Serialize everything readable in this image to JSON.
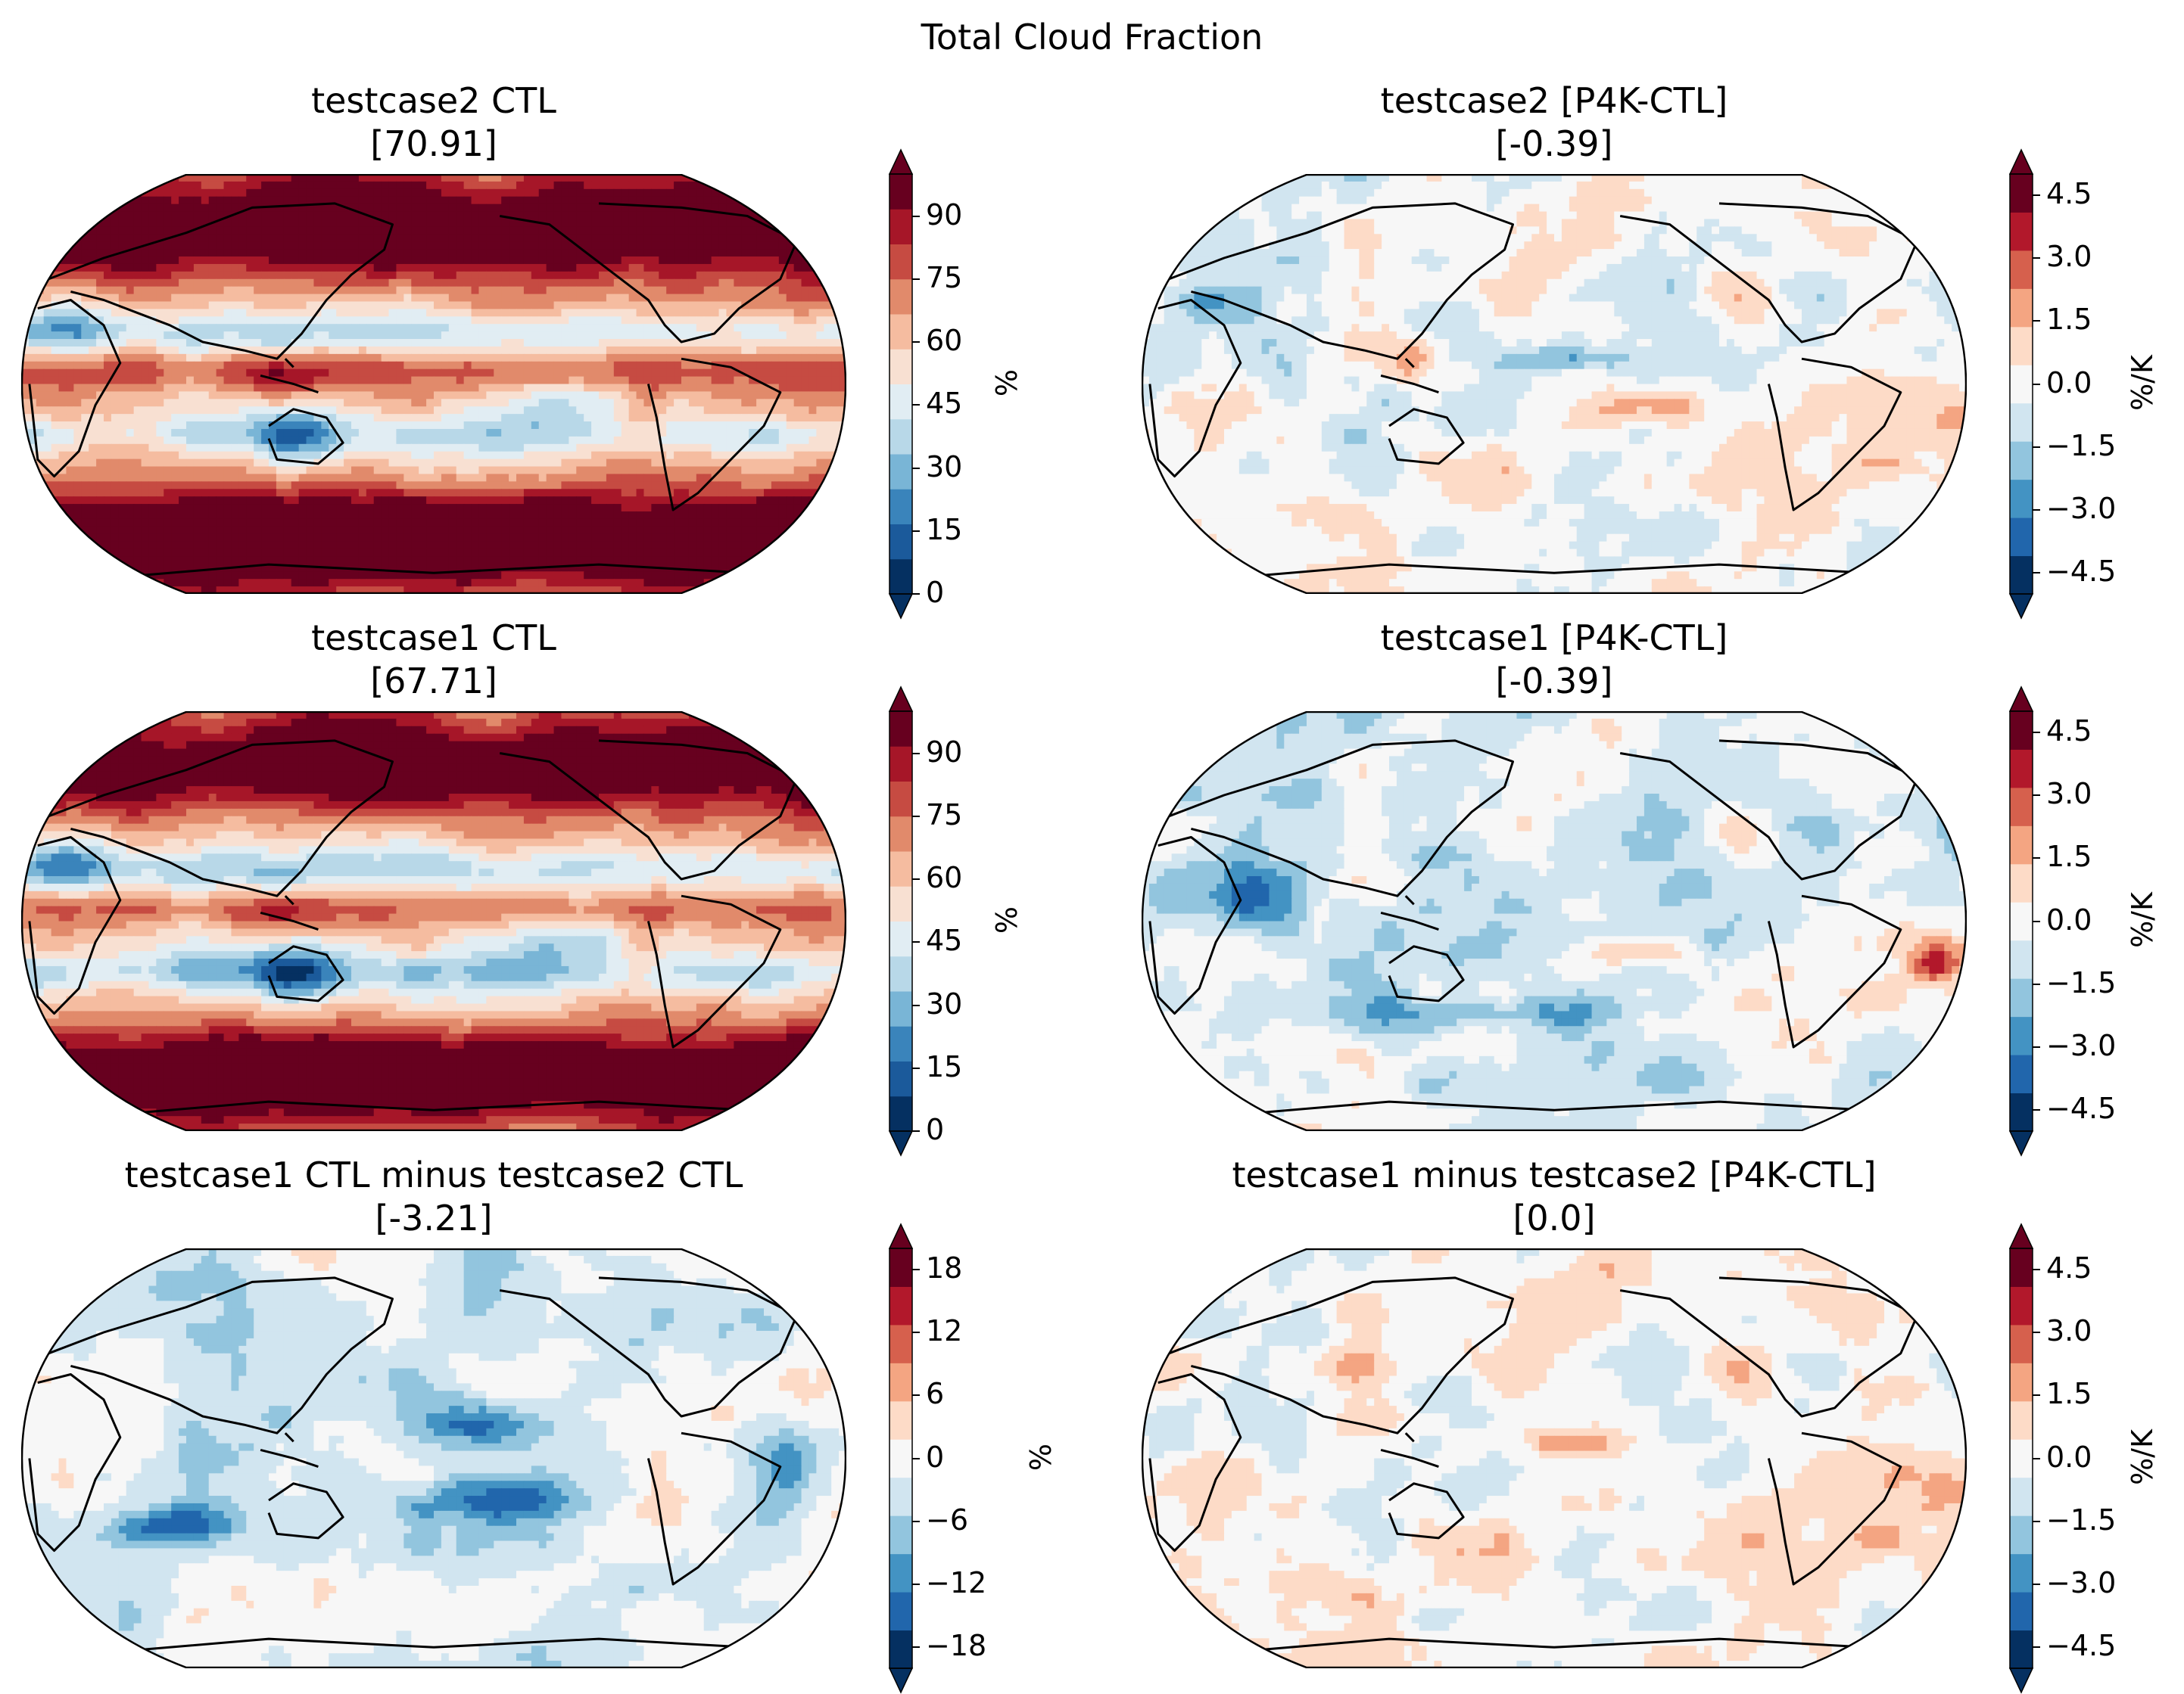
{
  "figure": {
    "title": "Total Cloud Fraction"
  },
  "colors": {
    "rdbu_ctl": [
      "#053061",
      "#1b5a9b",
      "#3a84bb",
      "#79b5d6",
      "#b8d8e8",
      "#e1edf3",
      "#f8e0d2",
      "#f5bca0",
      "#e18a6b",
      "#c64b42",
      "#a61628",
      "#67001f"
    ],
    "rdbu_diff": [
      "#053061",
      "#2166ac",
      "#4393c3",
      "#92c5de",
      "#d1e5f0",
      "#f7f7f7",
      "#fddbc7",
      "#f4a582",
      "#d6604d",
      "#b2182b",
      "#67001f"
    ],
    "coast": "#000000"
  },
  "panels": [
    {
      "id": "p11",
      "title": "testcase2 CTL",
      "subtitle": "[70.91]",
      "cbar_label": "%",
      "ticks": [
        "0",
        "15",
        "30",
        "45",
        "60",
        "75",
        "90"
      ],
      "tick_values": [
        0,
        15,
        30,
        45,
        60,
        75,
        90
      ],
      "range": [
        0,
        100
      ],
      "palette": "rdbu_ctl",
      "field": "ctl2"
    },
    {
      "id": "p12",
      "title": "testcase2 [P4K-CTL]",
      "subtitle": "[-0.39]",
      "cbar_label": "%/K",
      "ticks": [
        "−4.5",
        "−3.0",
        "−1.5",
        "0.0",
        "1.5",
        "3.0",
        "4.5"
      ],
      "tick_values": [
        -4.5,
        -3.0,
        -1.5,
        0.0,
        1.5,
        3.0,
        4.5
      ],
      "range": [
        -5,
        5
      ],
      "palette": "rdbu_diff",
      "field": "d2"
    },
    {
      "id": "p21",
      "title": "testcase1 CTL",
      "subtitle": "[67.71]",
      "cbar_label": "%",
      "ticks": [
        "0",
        "15",
        "30",
        "45",
        "60",
        "75",
        "90"
      ],
      "tick_values": [
        0,
        15,
        30,
        45,
        60,
        75,
        90
      ],
      "range": [
        0,
        100
      ],
      "palette": "rdbu_ctl",
      "field": "ctl1"
    },
    {
      "id": "p22",
      "title": "testcase1 [P4K-CTL]",
      "subtitle": "[-0.39]",
      "cbar_label": "%/K",
      "ticks": [
        "−4.5",
        "−3.0",
        "−1.5",
        "0.0",
        "1.5",
        "3.0",
        "4.5"
      ],
      "tick_values": [
        -4.5,
        -3.0,
        -1.5,
        0.0,
        1.5,
        3.0,
        4.5
      ],
      "range": [
        -5,
        5
      ],
      "palette": "rdbu_diff",
      "field": "d1"
    },
    {
      "id": "p31",
      "title": "testcase1 CTL minus testcase2 CTL",
      "subtitle": "[-3.21]",
      "cbar_label": "%",
      "ticks": [
        "−18",
        "−12",
        "−6",
        "0",
        "6",
        "12",
        "18"
      ],
      "tick_values": [
        -18,
        -12,
        -6,
        0,
        6,
        12,
        18
      ],
      "range": [
        -20,
        20
      ],
      "palette": "rdbu_diff",
      "field": "dctl"
    },
    {
      "id": "p32",
      "title": "testcase1 minus testcase2 [P4K-CTL]",
      "subtitle": "[0.0]",
      "cbar_label": "%/K",
      "ticks": [
        "−4.5",
        "−3.0",
        "−1.5",
        "0.0",
        "1.5",
        "3.0",
        "4.5"
      ],
      "tick_values": [
        -4.5,
        -3.0,
        -1.5,
        0.0,
        1.5,
        3.0,
        4.5
      ],
      "range": [
        -5,
        5
      ],
      "palette": "rdbu_diff",
      "field": "ddiff"
    }
  ]
}
